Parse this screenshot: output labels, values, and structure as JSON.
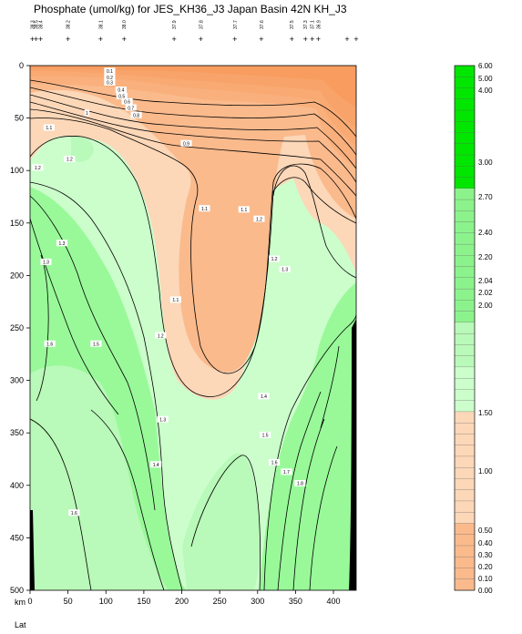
{
  "chart_data": {
    "type": "contour",
    "title": "Phosphate (umol/kg) for JES_KH36_J3 Japan Basin 42N KH_J3",
    "x_unit_label": "km",
    "x_var_label": "Lat",
    "x_ticks": [
      0,
      50,
      100,
      150,
      200,
      250,
      300,
      350,
      400
    ],
    "xlim": [
      0,
      430
    ],
    "y_ticks": [
      0,
      50,
      100,
      150,
      200,
      250,
      300,
      350,
      400,
      450,
      500
    ],
    "ylim": [
      0,
      500
    ],
    "y_inverted": true,
    "station_labels": [
      "38.3",
      "38.5",
      "38.4",
      "38.2",
      "38.1",
      "38.0",
      "37.9",
      "37.8",
      "37.7",
      "37.6",
      "37.5",
      "37.3",
      "37.1",
      "36.9"
    ],
    "station_km": [
      3,
      8,
      14,
      50,
      93,
      124,
      190,
      225,
      270,
      305,
      345,
      363,
      372,
      380,
      418,
      430
    ],
    "colorbar_ticks": [
      "0.00",
      "0.10",
      "0.20",
      "0.30",
      "0.40",
      "0.50",
      "1.00",
      "1.50",
      "2.00",
      "2.02",
      "2.04",
      "2.20",
      "2.40",
      "2.70",
      "3.00",
      "4.00",
      "5.00",
      "6.00"
    ],
    "contour_labels": [
      {
        "text": "0.1",
        "km": 105,
        "depth": 5
      },
      {
        "text": "0.2",
        "km": 105,
        "depth": 11
      },
      {
        "text": "0.3",
        "km": 105,
        "depth": 16
      },
      {
        "text": "0.4",
        "km": 120,
        "depth": 23
      },
      {
        "text": "0.5",
        "km": 121,
        "depth": 29
      },
      {
        "text": "0.6",
        "km": 128,
        "depth": 34
      },
      {
        "text": "0.7",
        "km": 133,
        "depth": 40
      },
      {
        "text": "0.8",
        "km": 140,
        "depth": 47
      },
      {
        "text": "1",
        "km": 75,
        "depth": 45
      },
      {
        "text": "1.1",
        "km": 25,
        "depth": 59
      },
      {
        "text": "0.9",
        "km": 206,
        "depth": 74
      },
      {
        "text": "1.2",
        "km": 52,
        "depth": 89
      },
      {
        "text": "1.2",
        "km": 10,
        "depth": 97
      },
      {
        "text": "1.1",
        "km": 230,
        "depth": 136
      },
      {
        "text": "1.1",
        "km": 282,
        "depth": 137
      },
      {
        "text": "1.2",
        "km": 302,
        "depth": 146
      },
      {
        "text": "1.3",
        "km": 42,
        "depth": 169
      },
      {
        "text": "1.3",
        "km": 21,
        "depth": 187
      },
      {
        "text": "1.2",
        "km": 322,
        "depth": 184
      },
      {
        "text": "1.3",
        "km": 336,
        "depth": 194
      },
      {
        "text": "1.1",
        "km": 192,
        "depth": 223
      },
      {
        "text": "1.2",
        "km": 172,
        "depth": 257
      },
      {
        "text": "1.6",
        "km": 26,
        "depth": 265
      },
      {
        "text": "1.5",
        "km": 87,
        "depth": 265
      },
      {
        "text": "1.4",
        "km": 308,
        "depth": 315
      },
      {
        "text": "1.3",
        "km": 175,
        "depth": 337
      },
      {
        "text": "1.5",
        "km": 310,
        "depth": 352
      },
      {
        "text": "1.4",
        "km": 166,
        "depth": 380
      },
      {
        "text": "1.6",
        "km": 322,
        "depth": 378
      },
      {
        "text": "1.7",
        "km": 338,
        "depth": 387
      },
      {
        "text": "1.8",
        "km": 356,
        "depth": 398
      },
      {
        "text": "1.6",
        "km": 58,
        "depth": 426
      }
    ]
  },
  "colors": {
    "c_000_010": "#f79656",
    "c_010_020": "#f89c5f",
    "c_020_030": "#f8a369",
    "c_030_040": "#f9aa73",
    "c_040_050": "#f9b07d",
    "c_050_100": "#faba8c",
    "c_100_150": "#fcd7b8",
    "c_150_200": "#ccfecc",
    "c_200_300": "#99f999",
    "c_pale_green": "#b9f9b9",
    "c_mid_green": "#8cf38c",
    "c_bright_green": "#00e600",
    "c_terrain": "#000000"
  }
}
